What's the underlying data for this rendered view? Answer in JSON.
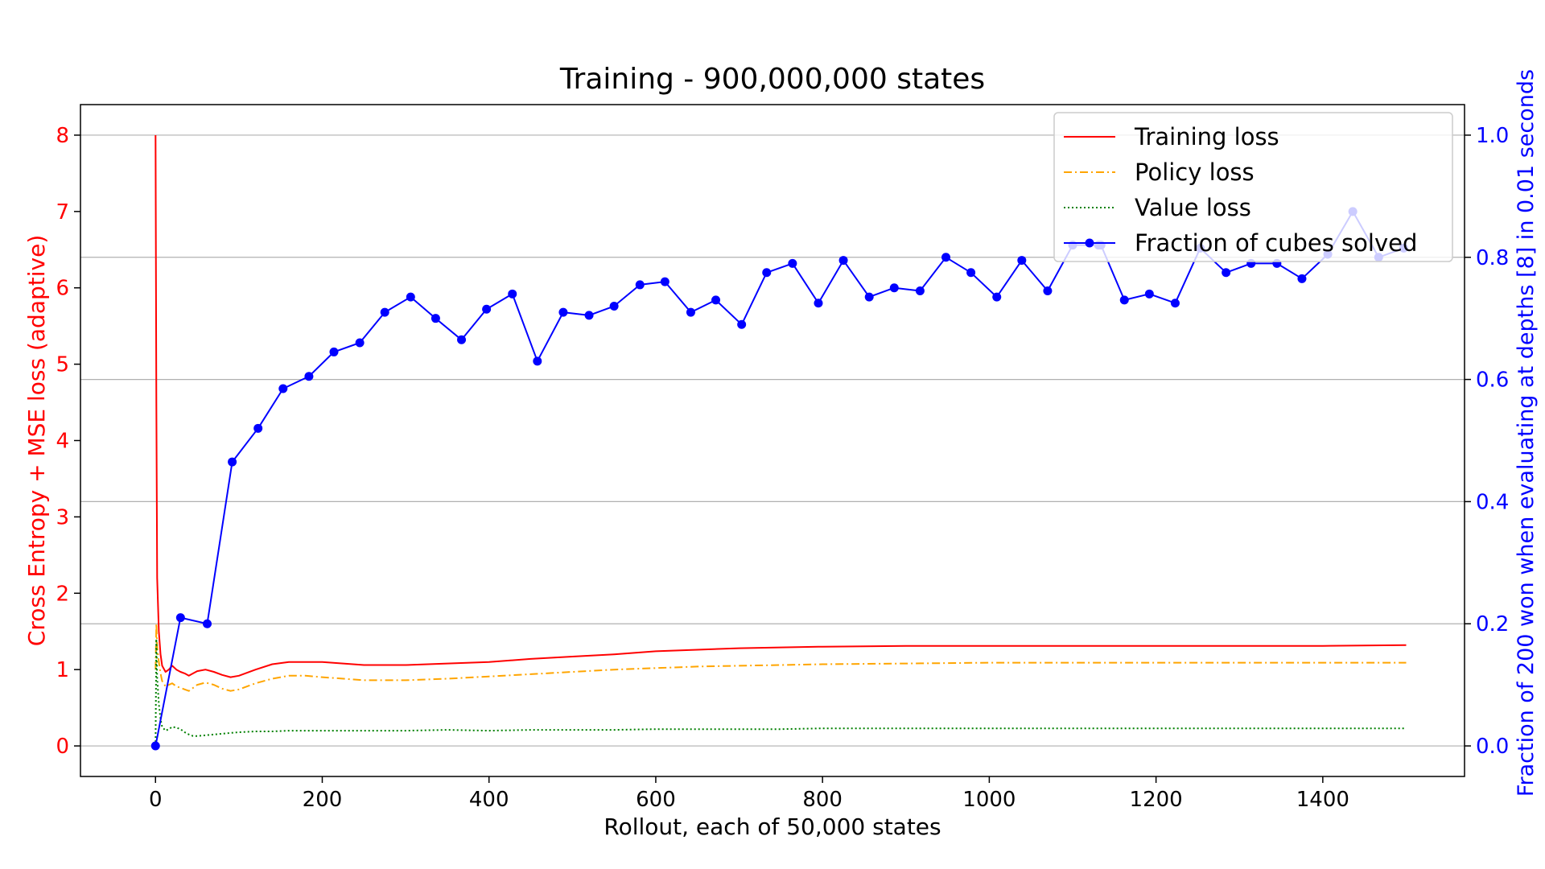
{
  "chart_data": {
    "type": "line",
    "title": "Training - 900,000,000 states",
    "xlabel": "Rollout, each of 50,000 states",
    "ylabel_left": "Cross Entropy + MSE loss (adaptive)",
    "ylabel_right": "Fraction of 200 won when evaluating at depths [8] in 0.01 seconds",
    "xlim": [
      -90,
      1570
    ],
    "ylim_left": [
      -0.4,
      8.4
    ],
    "ylim_right": [
      -0.05,
      1.05
    ],
    "x_ticks": [
      0,
      200,
      400,
      600,
      800,
      1000,
      1200,
      1400
    ],
    "x_tick_labels": [
      "0",
      "200",
      "400",
      "600",
      "800",
      "1000",
      "1200",
      "1400"
    ],
    "y_left_ticks": [
      0,
      1,
      2,
      3,
      4,
      5,
      6,
      7,
      8
    ],
    "y_left_tick_labels": [
      "0",
      "1",
      "2",
      "3",
      "4",
      "5",
      "6",
      "7",
      "8"
    ],
    "y_right_ticks": [
      0.0,
      0.2,
      0.4,
      0.6,
      0.8,
      1.0
    ],
    "y_right_tick_labels": [
      "0.0",
      "0.2",
      "0.4",
      "0.6",
      "0.8",
      "1.0"
    ],
    "grid": "horizontal lines at right-axis ticks",
    "legend_position": "top-right",
    "colors": {
      "left_axis": "#ff0000",
      "right_axis": "#0000ff",
      "training": "#ff0000",
      "policy": "#ffa500",
      "value": "#008000",
      "fraction": "#0000ff",
      "grid": "#b0b0b0"
    },
    "series": [
      {
        "name": "Training loss",
        "axis": "left",
        "style": "solid",
        "x": [
          0,
          1,
          2,
          4,
          6,
          8,
          12,
          16,
          20,
          25,
          30,
          35,
          40,
          45,
          50,
          60,
          70,
          80,
          90,
          100,
          120,
          140,
          160,
          180,
          200,
          250,
          300,
          350,
          400,
          450,
          500,
          550,
          600,
          650,
          700,
          750,
          800,
          900,
          1000,
          1100,
          1200,
          1300,
          1400,
          1500
        ],
        "y": [
          8.0,
          4.5,
          2.2,
          1.5,
          1.2,
          1.05,
          0.97,
          1.0,
          1.05,
          1.0,
          0.97,
          0.95,
          0.92,
          0.95,
          0.98,
          1.0,
          0.97,
          0.93,
          0.9,
          0.92,
          1.0,
          1.07,
          1.1,
          1.1,
          1.1,
          1.06,
          1.06,
          1.08,
          1.1,
          1.14,
          1.17,
          1.2,
          1.24,
          1.26,
          1.28,
          1.29,
          1.3,
          1.31,
          1.31,
          1.31,
          1.31,
          1.31,
          1.31,
          1.32
        ]
      },
      {
        "name": "Policy loss",
        "axis": "left",
        "style": "dashdot",
        "x": [
          0,
          1,
          2,
          4,
          6,
          8,
          12,
          16,
          20,
          25,
          30,
          35,
          40,
          45,
          50,
          60,
          70,
          80,
          90,
          100,
          120,
          140,
          160,
          180,
          200,
          250,
          300,
          350,
          400,
          450,
          500,
          550,
          600,
          650,
          700,
          750,
          800,
          900,
          1000,
          1100,
          1200,
          1300,
          1400,
          1500
        ],
        "y": [
          1.0,
          1.6,
          1.3,
          1.1,
          0.95,
          0.85,
          0.78,
          0.8,
          0.82,
          0.78,
          0.76,
          0.74,
          0.72,
          0.76,
          0.8,
          0.83,
          0.8,
          0.75,
          0.72,
          0.74,
          0.82,
          0.88,
          0.92,
          0.92,
          0.9,
          0.86,
          0.86,
          0.88,
          0.91,
          0.94,
          0.97,
          1.0,
          1.02,
          1.04,
          1.05,
          1.06,
          1.07,
          1.08,
          1.09,
          1.09,
          1.09,
          1.09,
          1.09,
          1.09
        ]
      },
      {
        "name": "Value loss",
        "axis": "left",
        "style": "dotted",
        "x": [
          0,
          1,
          2,
          4,
          6,
          8,
          12,
          16,
          20,
          25,
          30,
          35,
          40,
          45,
          50,
          60,
          70,
          80,
          90,
          100,
          120,
          140,
          160,
          180,
          200,
          250,
          300,
          350,
          400,
          450,
          500,
          550,
          600,
          650,
          700,
          750,
          800,
          900,
          1000,
          1100,
          1200,
          1300,
          1400,
          1500
        ],
        "y": [
          0.0,
          1.4,
          0.9,
          0.55,
          0.35,
          0.25,
          0.2,
          0.22,
          0.25,
          0.24,
          0.22,
          0.18,
          0.15,
          0.13,
          0.13,
          0.14,
          0.15,
          0.16,
          0.17,
          0.18,
          0.19,
          0.19,
          0.2,
          0.2,
          0.2,
          0.2,
          0.2,
          0.21,
          0.2,
          0.21,
          0.21,
          0.21,
          0.22,
          0.22,
          0.22,
          0.22,
          0.23,
          0.23,
          0.23,
          0.23,
          0.23,
          0.23,
          0.23,
          0.23
        ]
      },
      {
        "name": "Fraction of cubes solved",
        "axis": "right",
        "style": "solid-markers",
        "x": [
          0,
          30,
          62,
          92,
          123,
          153,
          184,
          214,
          245,
          275,
          306,
          336,
          367,
          397,
          428,
          458,
          489,
          520,
          550,
          581,
          611,
          642,
          672,
          703,
          733,
          764,
          795,
          825,
          856,
          886,
          917,
          948,
          978,
          1009,
          1039,
          1070,
          1100,
          1131,
          1134,
          1162,
          1192,
          1223,
          1253,
          1284,
          1314,
          1345,
          1375,
          1406,
          1436,
          1467,
          1497
        ],
        "y": [
          0.0,
          0.21,
          0.2,
          0.465,
          0.52,
          0.585,
          0.605,
          0.645,
          0.66,
          0.71,
          0.735,
          0.7,
          0.665,
          0.715,
          0.74,
          0.63,
          0.71,
          0.705,
          0.72,
          0.755,
          0.76,
          0.71,
          0.73,
          0.69,
          0.775,
          0.79,
          0.725,
          0.795,
          0.735,
          0.75,
          0.745,
          0.8,
          0.775,
          0.735,
          0.795,
          0.745,
          0.82,
          0.82,
          0.82,
          0.73,
          0.74,
          0.725,
          0.815,
          0.775,
          0.79,
          0.79,
          0.765,
          0.805,
          0.875,
          0.8,
          0.815
        ]
      }
    ]
  }
}
